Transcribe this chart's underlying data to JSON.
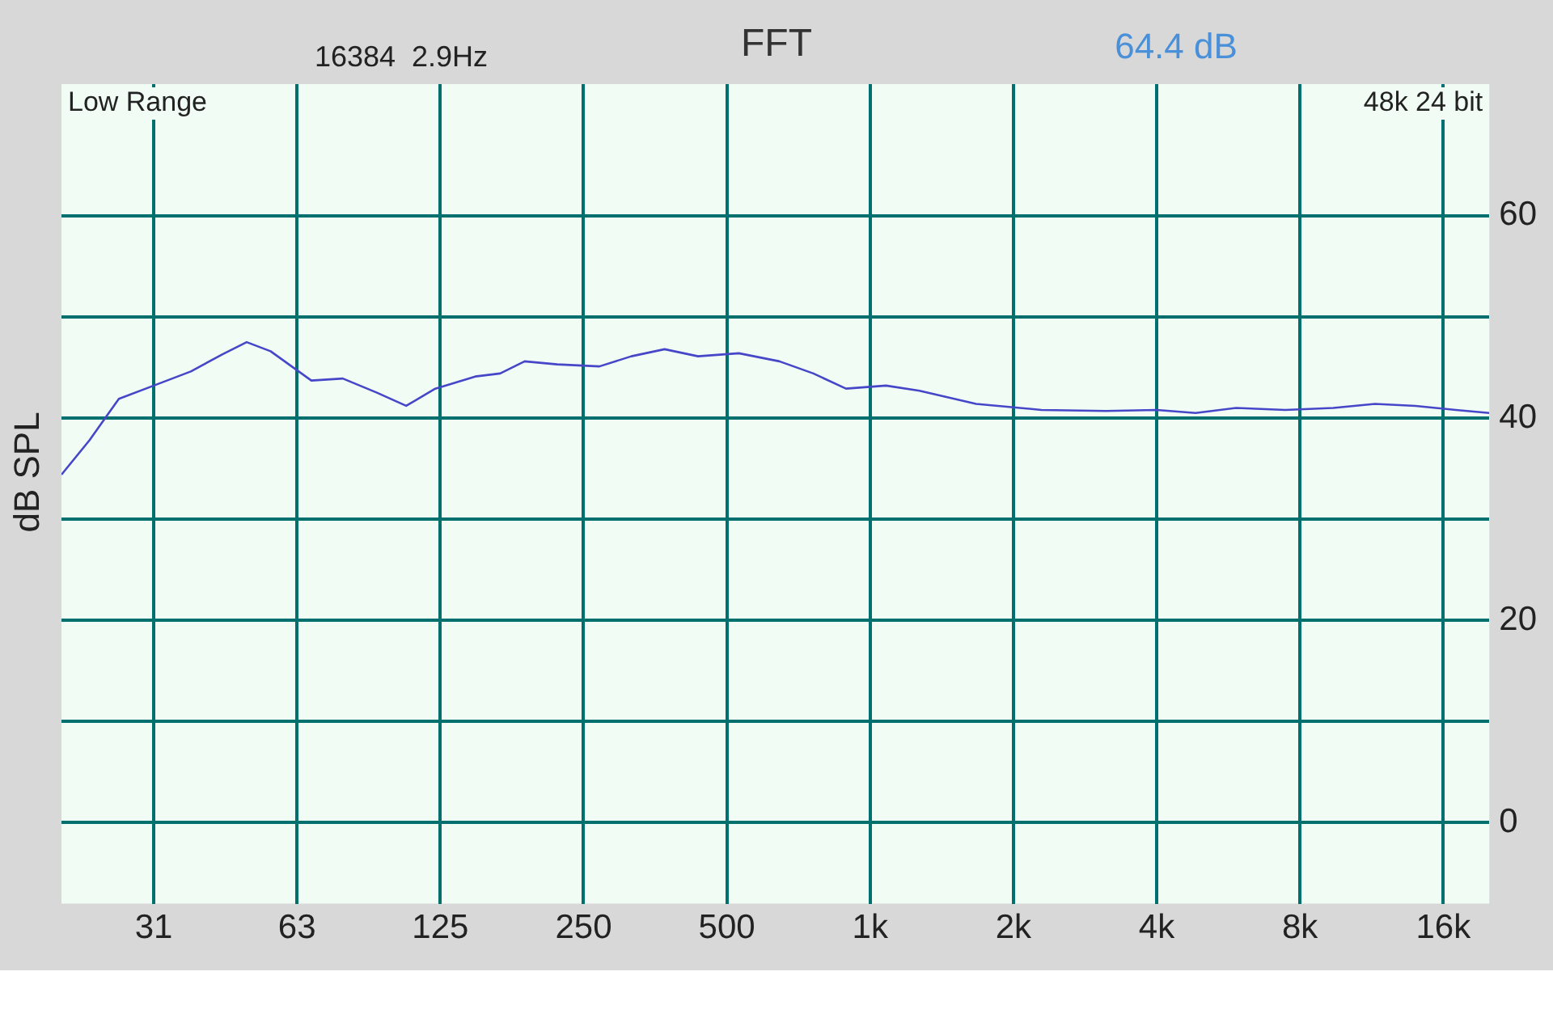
{
  "chart_data": {
    "type": "line",
    "title": "FFT",
    "ylabel": "dB SPL",
    "annotations": [
      "16384  2.9Hz",
      "64.4 dB",
      "Low Range",
      "48k 24 bit"
    ],
    "x": [
      20,
      22.9,
      26.4,
      31.25,
      37.4,
      43.6,
      49,
      55,
      67,
      78,
      92,
      106,
      122,
      148,
      167,
      188,
      220,
      270,
      315,
      370,
      435,
      530,
      645,
      760,
      890,
      1080,
      1270,
      1670,
      2290,
      3130,
      4000,
      4830,
      5880,
      7450,
      9400,
      11500,
      14000,
      17000,
      20000
    ],
    "series": [
      {
        "color": "#4646c8",
        "values": [
          34.4,
          37.8,
          41.9,
          43.2,
          44.6,
          46.3,
          47.5,
          46.6,
          43.7,
          43.9,
          42.5,
          41.2,
          42.9,
          44.1,
          44.4,
          45.6,
          45.3,
          45.1,
          46.1,
          46.8,
          46.1,
          46.4,
          45.6,
          44.4,
          42.9,
          43.2,
          42.7,
          41.4,
          40.8,
          40.7,
          40.8,
          40.5,
          41,
          40.8,
          41,
          41.4,
          41.2,
          40.8,
          40.5
        ]
      }
    ],
    "log": "x",
    "xlim": [
      20,
      20000
    ],
    "xticks": [
      {
        "value": 31.25,
        "label": "31"
      },
      {
        "value": 62.5,
        "label": "63"
      },
      125,
      250,
      500,
      {
        "value": 1000,
        "label": "1k"
      },
      {
        "value": 2000,
        "label": "2k"
      },
      {
        "value": 4000,
        "label": "4k"
      },
      {
        "value": 8000,
        "label": "8k"
      },
      {
        "value": 16000,
        "label": "16k"
      }
    ],
    "ylim": [
      -8,
      73
    ],
    "yticks": [
      0,
      {
        "value": 10,
        "label": null
      },
      20,
      {
        "value": 30,
        "label": null
      },
      40,
      {
        "value": 50,
        "label": null
      },
      60
    ],
    "grid": true,
    "legend": false,
    "marker": "none",
    "line_style": "solid"
  }
}
